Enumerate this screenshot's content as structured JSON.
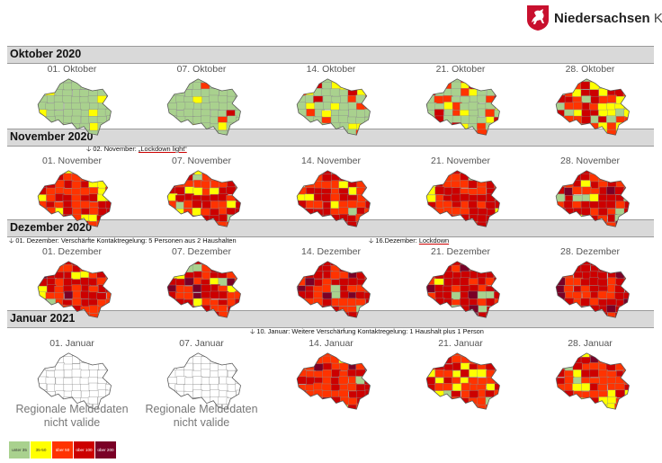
{
  "brand": {
    "name": "Niedersachsen",
    "tagline": "Klar."
  },
  "legend": [
    {
      "label": "unter 35",
      "color": "#a9d18e",
      "text_color": "#333333"
    },
    {
      "label": "35-50",
      "color": "#ffff00",
      "text_color": "#333333"
    },
    {
      "label": "über 50",
      "color": "#ff3300",
      "text_color": "#ffffff"
    },
    {
      "label": "über 100",
      "color": "#cc0000",
      "text_color": "#ffffff"
    },
    {
      "label": "über 200",
      "color": "#7a0026",
      "text_color": "#ffffff"
    }
  ],
  "months": [
    {
      "title": "Oktober 2020",
      "notes": [],
      "maps": [
        {
          "date": "01. Oktober",
          "mix": {
            "green": 0.86,
            "yellow": 0.1,
            "orange": 0.04,
            "red": 0,
            "darkred": 0,
            "white": 0
          }
        },
        {
          "date": "07. Oktober",
          "mix": {
            "green": 0.8,
            "yellow": 0.12,
            "orange": 0.06,
            "red": 0.02,
            "darkred": 0,
            "white": 0
          }
        },
        {
          "date": "14. Oktober",
          "mix": {
            "green": 0.66,
            "yellow": 0.12,
            "orange": 0.14,
            "red": 0.08,
            "darkred": 0,
            "white": 0
          }
        },
        {
          "date": "21. Oktober",
          "mix": {
            "green": 0.48,
            "yellow": 0.18,
            "orange": 0.2,
            "red": 0.14,
            "darkred": 0,
            "white": 0
          }
        },
        {
          "date": "28. Oktober",
          "mix": {
            "green": 0.2,
            "yellow": 0.22,
            "orange": 0.32,
            "red": 0.26,
            "darkred": 0,
            "white": 0
          }
        }
      ]
    },
    {
      "title": "November 2020",
      "notes": [
        {
          "prefix": "02. November: ",
          "underlined": "„Lockdown light“",
          "suffix": ""
        }
      ],
      "maps": [
        {
          "date": "01.   November",
          "mix": {
            "green": 0.04,
            "yellow": 0.16,
            "orange": 0.4,
            "red": 0.4,
            "darkred": 0,
            "white": 0
          }
        },
        {
          "date": "07. November",
          "mix": {
            "green": 0.04,
            "yellow": 0.14,
            "orange": 0.4,
            "red": 0.42,
            "darkred": 0,
            "white": 0
          }
        },
        {
          "date": "14. November",
          "mix": {
            "green": 0.06,
            "yellow": 0.14,
            "orange": 0.38,
            "red": 0.42,
            "darkred": 0,
            "white": 0
          }
        },
        {
          "date": "21. November",
          "mix": {
            "green": 0.02,
            "yellow": 0.1,
            "orange": 0.46,
            "red": 0.42,
            "darkred": 0,
            "white": 0
          }
        },
        {
          "date": "28. November",
          "mix": {
            "green": 0.08,
            "yellow": 0.1,
            "orange": 0.34,
            "red": 0.44,
            "darkred": 0.04,
            "white": 0
          }
        }
      ]
    },
    {
      "title": "Dezember 2020",
      "notes": [
        {
          "prefix": "01. Dezember: Verschärfte Kontaktregelung: 5 Personen aus 2 Haushalten",
          "underlined": "",
          "suffix": ""
        },
        {
          "prefix": "16.Dezember: ",
          "underlined": "Lockdown",
          "suffix": ""
        }
      ],
      "maps": [
        {
          "date": "01.   Dezember",
          "mix": {
            "green": 0.02,
            "yellow": 0.08,
            "orange": 0.4,
            "red": 0.44,
            "darkred": 0.06,
            "white": 0
          }
        },
        {
          "date": "07. Dezember",
          "mix": {
            "green": 0.02,
            "yellow": 0.06,
            "orange": 0.44,
            "red": 0.44,
            "darkred": 0.04,
            "white": 0
          }
        },
        {
          "date": "14. Dezember",
          "mix": {
            "green": 0.04,
            "yellow": 0.04,
            "orange": 0.32,
            "red": 0.54,
            "darkred": 0.06,
            "white": 0
          }
        },
        {
          "date": "21. Dezember",
          "mix": {
            "green": 0.04,
            "yellow": 0.02,
            "orange": 0.22,
            "red": 0.6,
            "darkred": 0.12,
            "white": 0
          }
        },
        {
          "date": "28. Dezember",
          "mix": {
            "green": 0.02,
            "yellow": 0.02,
            "orange": 0.26,
            "red": 0.56,
            "darkred": 0.14,
            "white": 0
          }
        }
      ]
    },
    {
      "title": "Januar 2021",
      "notes": [
        {
          "prefix": "10. Januar: Weitere Verschärfung Kontaktregelung: 1 Haushalt plus 1 Person",
          "underlined": "",
          "suffix": ""
        }
      ],
      "maps": [
        {
          "date": "01.   Januar",
          "invalid": "Regionale Meldedaten nicht valide",
          "mix": {
            "green": 0,
            "yellow": 0,
            "orange": 0,
            "red": 0,
            "darkred": 0,
            "white": 1
          }
        },
        {
          "date": "07. Januar",
          "invalid": "Regionale Meldedaten nicht valide",
          "mix": {
            "green": 0,
            "yellow": 0,
            "orange": 0,
            "red": 0,
            "darkred": 0,
            "white": 1
          }
        },
        {
          "date": "14. Januar",
          "mix": {
            "green": 0.02,
            "yellow": 0.04,
            "orange": 0.6,
            "red": 0.3,
            "darkred": 0.04,
            "white": 0
          }
        },
        {
          "date": "21. Januar",
          "mix": {
            "green": 0.06,
            "yellow": 0.14,
            "orange": 0.4,
            "red": 0.38,
            "darkred": 0.02,
            "white": 0
          }
        },
        {
          "date": "28. Januar",
          "mix": {
            "green": 0.08,
            "yellow": 0.18,
            "orange": 0.38,
            "red": 0.32,
            "darkred": 0.04,
            "white": 0
          }
        }
      ]
    }
  ],
  "palette": {
    "green": "#a9d18e",
    "yellow": "#ffff00",
    "orange": "#ff3300",
    "red": "#cc0000",
    "darkred": "#7a0026",
    "white": "#ffffff",
    "outline": "#555555"
  }
}
